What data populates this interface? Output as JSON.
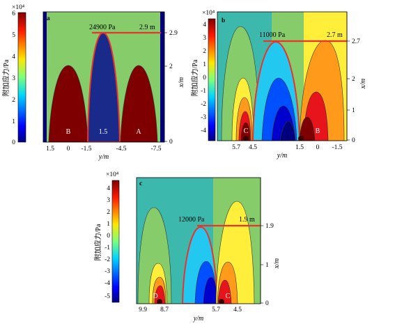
{
  "panels": [
    {
      "id": "a",
      "letter": "a",
      "colorbar": {
        "exponent": "×10⁴",
        "ticks": [
          "6",
          "5",
          "4",
          "3",
          "2",
          "1",
          "0"
        ],
        "label": "附加应力/Pa"
      },
      "annotation": {
        "stress": "24900  Pa",
        "depth": "2.9  m"
      },
      "right_axis": {
        "label": "x/m",
        "ticks": [
          "2.9",
          "2",
          "0"
        ]
      },
      "x_axis": {
        "label": "y/m",
        "ticks": [
          "1.5",
          "0",
          "-1.5",
          "-4.5",
          "-7.5"
        ]
      },
      "markers": [
        "B",
        "1.5",
        "A"
      ]
    },
    {
      "id": "b",
      "letter": "b",
      "colorbar": {
        "exponent": "×10⁴",
        "ticks": [
          "4",
          "3",
          "2",
          "1",
          "0",
          "-1",
          "-2",
          "-3",
          "-4"
        ],
        "label": "附加应力/Pa"
      },
      "annotation": {
        "stress": "11000  Pa",
        "depth": "2.7  m"
      },
      "right_axis": {
        "label": "x/m",
        "ticks": [
          "2.7",
          "2",
          "1",
          "0"
        ]
      },
      "x_axis": {
        "label": "y/m",
        "ticks": [
          "5.7",
          "4.5",
          "1.5",
          "0",
          "-1.5"
        ]
      },
      "markers": [
        "C",
        "B"
      ]
    },
    {
      "id": "c",
      "letter": "c",
      "colorbar": {
        "exponent": "×10⁴",
        "ticks": [
          "4",
          "3",
          "2",
          "1",
          "0",
          "-1",
          "-2",
          "-3",
          "-4",
          "-5"
        ],
        "label": "附加应力/Pa"
      },
      "annotation": {
        "stress": "12000  Pa",
        "depth": "1.9  m"
      },
      "right_axis": {
        "label": "x/m",
        "ticks": [
          "1.9",
          "1",
          "0"
        ]
      },
      "x_axis": {
        "label": "y/m",
        "ticks": [
          "9.9",
          "8.7",
          "5.7",
          "4.5"
        ]
      },
      "markers": [
        "D",
        "C"
      ]
    }
  ],
  "colors": {
    "jet_dark_blue": "#00007f",
    "jet_blue": "#0050ff",
    "jet_cyan": "#22c8f0",
    "jet_teal": "#3cb9ac",
    "jet_green": "#86cc6a",
    "jet_yellow": "#ffee3a",
    "jet_orange": "#ff9a1a",
    "jet_red": "#e8141c",
    "jet_dark_red": "#7f0000",
    "annotation_line": "#e8342c"
  }
}
